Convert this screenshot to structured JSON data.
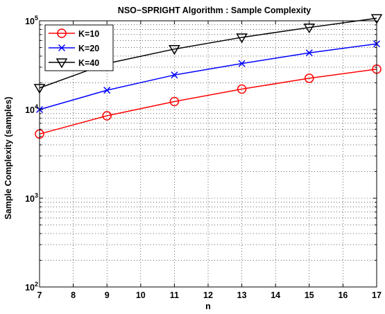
{
  "chart_data": {
    "type": "line",
    "title": "NSO−SPRIGHT Algorithm : Sample Complexity",
    "xlabel": "n",
    "ylabel": "Sample Complexity (samples)",
    "x": [
      7,
      9,
      11,
      13,
      15,
      17
    ],
    "xlim": [
      7,
      17
    ],
    "xticks": [
      "7",
      "8",
      "9",
      "10",
      "11",
      "12",
      "13",
      "14",
      "15",
      "16",
      "17"
    ],
    "ylim": [
      100,
      100000
    ],
    "yscale": "log",
    "yticks": [
      {
        "base": "10",
        "exp": "2"
      },
      {
        "base": "10",
        "exp": "3"
      },
      {
        "base": "10",
        "exp": "4"
      },
      {
        "base": "10",
        "exp": "5"
      }
    ],
    "grid": true,
    "legend_position": "top-left",
    "series": [
      {
        "name": "K=10",
        "color": "#ff0000",
        "marker": "circle",
        "values": [
          5300,
          8500,
          12300,
          17000,
          22500,
          28500
        ]
      },
      {
        "name": "K=20",
        "color": "#0000ff",
        "marker": "x",
        "values": [
          10000,
          16500,
          24500,
          33000,
          43500,
          55000
        ]
      },
      {
        "name": "K=40",
        "color": "#000000",
        "marker": "triangle-down",
        "values": [
          17500,
          33000,
          48000,
          65000,
          84000,
          107000
        ]
      }
    ]
  }
}
